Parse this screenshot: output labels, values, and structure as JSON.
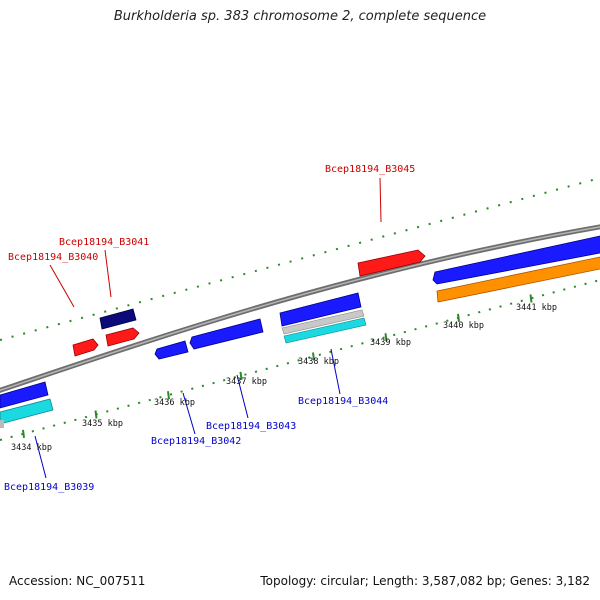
{
  "title": "Burkholderia sp. 383 chromosome 2, complete sequence",
  "footer": {
    "accession": "Accession: NC_007511",
    "summary": "Topology: circular; Length: 3,587,082 bp; Genes: 3,182"
  },
  "colors": {
    "forward_gene": "#1a1aff",
    "reverse_gene": "#ff1a1a",
    "dark_gene": "#0a0a7a",
    "cds": "#1ad9e0",
    "orange_feature": "#ff9000",
    "grey_feature": "#c8c8c8",
    "backbone": "#808080",
    "ruler": "#2a8a2a",
    "label_forward": "#0000cc",
    "label_reverse": "#cc0000"
  },
  "ticks": [
    {
      "kbp": 3434,
      "label": "3434 kbp"
    },
    {
      "kbp": 3435,
      "label": "3435 kbp"
    },
    {
      "kbp": 3436,
      "label": "3436 kbp"
    },
    {
      "kbp": 3437,
      "label": "3437 kbp"
    },
    {
      "kbp": 3438,
      "label": "3438 kbp"
    },
    {
      "kbp": 3439,
      "label": "3439 kbp"
    },
    {
      "kbp": 3440,
      "label": "3440 kbp"
    },
    {
      "kbp": 3441,
      "label": "3441 kbp"
    }
  ],
  "gene_labels": [
    {
      "id": "Bcep18194_B3045",
      "strand": "reverse"
    },
    {
      "id": "Bcep18194_B3041",
      "strand": "reverse"
    },
    {
      "id": "Bcep18194_B3040",
      "strand": "reverse"
    },
    {
      "id": "Bcep18194_B3044",
      "strand": "forward"
    },
    {
      "id": "Bcep18194_B3043",
      "strand": "forward"
    },
    {
      "id": "Bcep18194_B3042",
      "strand": "forward"
    },
    {
      "id": "Bcep18194_B3039",
      "strand": "forward"
    }
  ]
}
